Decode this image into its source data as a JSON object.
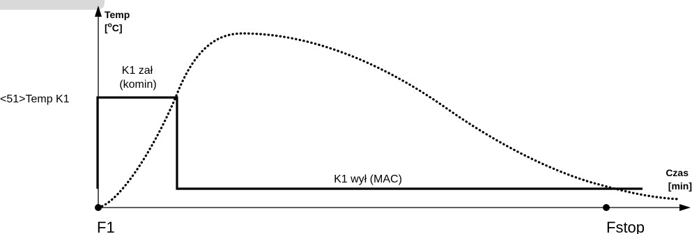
{
  "corner_tab": {
    "color": "#d9d9d9"
  },
  "axes": {
    "y_label_line1": "Temp",
    "y_label_line2": "[",
    "y_label_sup": "o",
    "y_label_unit": "C]",
    "x_label_line1": "Czas",
    "x_label_line2": "[min]"
  },
  "labels": {
    "threshold": "<51>Temp K1",
    "k1_on_line1": "K1 zał",
    "k1_on_line2": "(komin)",
    "k1_off": "K1 wył (MAC)",
    "start_point": "F1",
    "stop_point": "Fstop"
  },
  "colors": {
    "line": "#000000",
    "background": "#ffffff"
  }
}
